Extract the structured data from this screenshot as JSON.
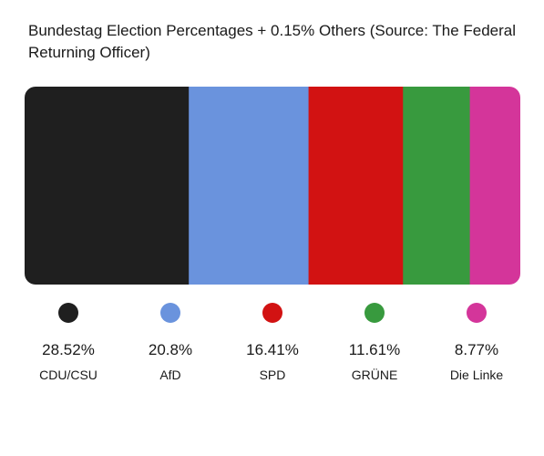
{
  "chart_data": {
    "type": "bar",
    "subtype": "stacked-100-horizontal",
    "title": "Bundestag Election Percentages + 0.15% Others (Source: The Federal Returning Officer)",
    "categories": [
      "CDU/CSU",
      "AfD",
      "SPD",
      "GRÜNE",
      "Die Linke"
    ],
    "values": [
      28.52,
      20.8,
      16.41,
      11.61,
      8.77
    ],
    "value_labels": [
      "28.52%",
      "20.8%",
      "16.41%",
      "11.61%",
      "8.77%"
    ],
    "colors": [
      "#1f1f1f",
      "#6a93dd",
      "#d21212",
      "#389a3e",
      "#d4359a"
    ],
    "legend": "bottom",
    "grid": false
  }
}
